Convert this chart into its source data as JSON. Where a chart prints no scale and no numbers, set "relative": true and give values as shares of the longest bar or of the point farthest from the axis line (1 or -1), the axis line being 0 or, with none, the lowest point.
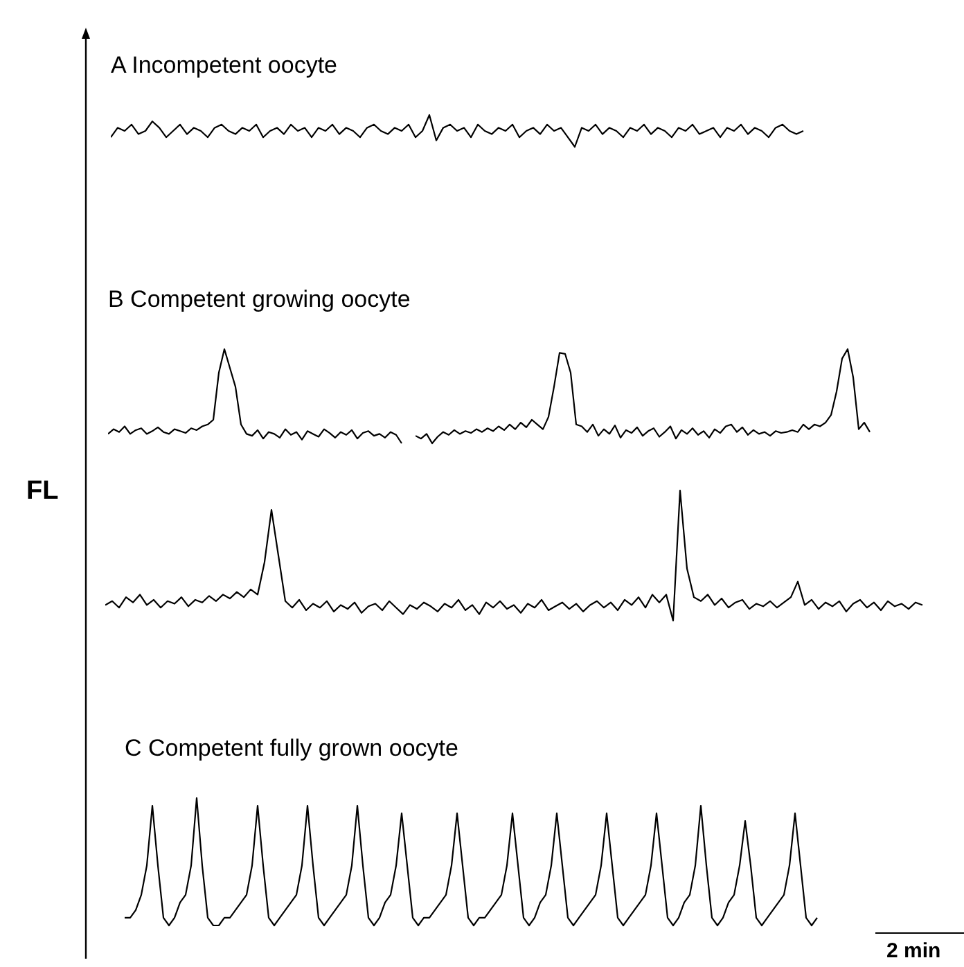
{
  "chart_data": [
    {
      "type": "line",
      "relative": true,
      "tick_labels": false,
      "title": "A Incompetent oocyte",
      "categories": [
        null,
        null,
        null,
        null,
        null,
        null,
        null,
        null,
        null,
        null,
        null,
        null,
        null,
        null,
        null,
        null,
        null,
        null,
        null,
        null,
        null,
        null,
        null,
        null,
        null,
        null,
        null,
        null,
        null,
        null,
        null,
        null,
        null,
        null,
        null,
        null,
        null,
        null,
        null,
        null,
        null,
        null,
        null,
        null,
        null,
        null,
        null,
        null,
        null,
        null,
        null,
        null,
        null,
        null,
        null,
        null,
        null,
        null,
        null,
        null,
        null,
        null,
        null,
        null,
        null,
        null,
        null,
        null,
        null,
        null,
        null,
        null,
        null,
        null,
        null,
        null,
        null,
        null,
        null,
        null,
        null,
        null,
        null,
        null,
        null,
        null,
        null,
        null,
        null,
        null,
        null,
        null,
        null,
        null,
        null,
        null,
        null,
        null,
        null,
        null,
        null
      ],
      "series": [
        {
          "color": "#000000",
          "values": [
            0.3,
            0.6,
            0.5,
            0.7,
            0.4,
            0.5,
            0.8,
            0.6,
            0.3,
            0.5,
            0.7,
            0.4,
            0.6,
            0.5,
            0.3,
            0.6,
            0.7,
            0.5,
            0.4,
            0.6,
            0.5,
            0.7,
            0.3,
            0.5,
            0.6,
            0.4,
            0.7,
            0.5,
            0.6,
            0.3,
            0.6,
            0.5,
            0.7,
            0.4,
            0.6,
            0.5,
            0.3,
            0.6,
            0.7,
            0.5,
            0.4,
            0.6,
            0.5,
            0.7,
            0.3,
            0.5,
            1.0,
            0.2,
            0.6,
            0.7,
            0.5,
            0.6,
            0.3,
            0.7,
            0.5,
            0.4,
            0.6,
            0.5,
            0.7,
            0.3,
            0.5,
            0.6,
            0.4,
            0.7,
            0.5,
            0.6,
            0.3,
            0.0,
            0.6,
            0.5,
            0.7,
            0.4,
            0.6,
            0.5,
            0.3,
            0.6,
            0.5,
            0.7,
            0.4,
            0.6,
            0.5,
            0.3,
            0.6,
            0.5,
            0.7,
            0.4,
            0.5,
            0.6,
            0.3,
            0.6,
            0.5,
            0.7,
            0.4,
            0.6,
            0.5,
            0.3,
            0.6,
            0.7,
            0.5,
            0.4,
            0.5
          ]
        }
      ]
    },
    {
      "type": "line",
      "relative": true,
      "tick_labels": false,
      "title": "B Competent growing oocyte",
      "ylabel": "FL",
      "categories": [
        null,
        null,
        null,
        null,
        null,
        null,
        null,
        null,
        null,
        null,
        null,
        null,
        null,
        null,
        null,
        null,
        null,
        null,
        null,
        null,
        null,
        null,
        null,
        null,
        null,
        null,
        null,
        null,
        null,
        null,
        null,
        null,
        null,
        null,
        null,
        null,
        null,
        null,
        null,
        null,
        null,
        null,
        null,
        null,
        null,
        null,
        null,
        null,
        null,
        null,
        null,
        null,
        null,
        null
      ],
      "series": [
        {
          "color": "#000000",
          "values": [
            0.1,
            0.15,
            0.12,
            0.18,
            0.1,
            0.14,
            0.16,
            0.1,
            0.13,
            0.17,
            0.12,
            0.1,
            0.15,
            0.13,
            0.11,
            0.16,
            0.14,
            0.18,
            0.2,
            0.25,
            0.75,
            1.0,
            0.8,
            0.6,
            0.2,
            0.1,
            0.08,
            0.14,
            0.05,
            0.12,
            0.1,
            0.06,
            0.15,
            0.09,
            0.12,
            0.04,
            0.13,
            0.1,
            0.07,
            0.15,
            0.11,
            0.06,
            0.12,
            0.09,
            0.14,
            0.05,
            0.11,
            0.13,
            0.08,
            0.1,
            0.06,
            0.12,
            0.09,
            0.0
          ]
        }
      ]
    },
    {
      "type": "line",
      "relative": true,
      "tick_labels": false,
      "categories": [
        null,
        null,
        null,
        null,
        null,
        null,
        null,
        null,
        null,
        null,
        null,
        null,
        null,
        null,
        null,
        null,
        null,
        null,
        null,
        null,
        null,
        null,
        null,
        null,
        null,
        null,
        null,
        null,
        null,
        null,
        null,
        null,
        null,
        null,
        null,
        null,
        null,
        null,
        null,
        null,
        null,
        null,
        null,
        null,
        null,
        null,
        null,
        null,
        null,
        null,
        null,
        null,
        null,
        null,
        null,
        null,
        null,
        null,
        null,
        null,
        null,
        null,
        null,
        null,
        null,
        null,
        null,
        null,
        null,
        null,
        null,
        null,
        null,
        null,
        null,
        null,
        null,
        null,
        null,
        null,
        null,
        null,
        null
      ],
      "series": [
        {
          "color": "#000000",
          "values": [
            0.08,
            0.05,
            0.1,
            0.0,
            0.07,
            0.12,
            0.09,
            0.14,
            0.1,
            0.13,
            0.11,
            0.15,
            0.12,
            0.16,
            0.13,
            0.18,
            0.14,
            0.2,
            0.15,
            0.22,
            0.17,
            0.25,
            0.2,
            0.15,
            0.28,
            0.6,
            0.96,
            0.95,
            0.75,
            0.2,
            0.18,
            0.12,
            0.2,
            0.08,
            0.15,
            0.1,
            0.19,
            0.06,
            0.14,
            0.11,
            0.17,
            0.08,
            0.13,
            0.16,
            0.07,
            0.12,
            0.18,
            0.05,
            0.14,
            0.1,
            0.16,
            0.09,
            0.13,
            0.06,
            0.15,
            0.11,
            0.18,
            0.2,
            0.12,
            0.17,
            0.09,
            0.14,
            0.1,
            0.12,
            0.08,
            0.13,
            0.11,
            0.12,
            0.14,
            0.12,
            0.2,
            0.15,
            0.2,
            0.18,
            0.22,
            0.3,
            0.55,
            0.9,
            1.0,
            0.7,
            0.15,
            0.22,
            0.12
          ]
        }
      ]
    },
    {
      "type": "line",
      "relative": true,
      "tick_labels": false,
      "categories": [
        null,
        null,
        null,
        null,
        null,
        null,
        null,
        null,
        null,
        null,
        null,
        null,
        null,
        null,
        null,
        null,
        null,
        null,
        null,
        null,
        null,
        null,
        null,
        null,
        null,
        null,
        null,
        null,
        null,
        null,
        null,
        null,
        null,
        null,
        null,
        null,
        null,
        null,
        null,
        null,
        null,
        null,
        null,
        null,
        null,
        null,
        null,
        null,
        null,
        null,
        null,
        null,
        null,
        null,
        null,
        null,
        null,
        null,
        null,
        null,
        null,
        null,
        null,
        null,
        null,
        null,
        null,
        null,
        null,
        null,
        null,
        null,
        null,
        null,
        null,
        null,
        null,
        null,
        null,
        null,
        null,
        null,
        null,
        null,
        null,
        null,
        null,
        null,
        null,
        null,
        null,
        null,
        null,
        null,
        null,
        null,
        null,
        null,
        null,
        null,
        null,
        null,
        null,
        null,
        null,
        null,
        null,
        null,
        null,
        null,
        null,
        null,
        null,
        null,
        null,
        null,
        null,
        null,
        null
      ],
      "series": [
        {
          "color": "#000000",
          "values": [
            0.12,
            0.15,
            0.1,
            0.18,
            0.14,
            0.2,
            0.12,
            0.16,
            0.1,
            0.15,
            0.13,
            0.18,
            0.11,
            0.16,
            0.14,
            0.19,
            0.15,
            0.2,
            0.17,
            0.22,
            0.18,
            0.24,
            0.2,
            0.45,
            0.85,
            0.5,
            0.15,
            0.1,
            0.16,
            0.08,
            0.13,
            0.1,
            0.15,
            0.07,
            0.12,
            0.09,
            0.14,
            0.06,
            0.11,
            0.13,
            0.08,
            0.15,
            0.1,
            0.05,
            0.12,
            0.09,
            0.14,
            0.11,
            0.07,
            0.13,
            0.1,
            0.16,
            0.08,
            0.12,
            0.05,
            0.14,
            0.1,
            0.15,
            0.09,
            0.12,
            0.06,
            0.13,
            0.1,
            0.16,
            0.08,
            0.11,
            0.14,
            0.09,
            0.13,
            0.07,
            0.12,
            0.15,
            0.1,
            0.14,
            0.08,
            0.16,
            0.12,
            0.18,
            0.1,
            0.2,
            0.14,
            0.2,
            0.0,
            1.0,
            0.4,
            0.18,
            0.15,
            0.2,
            0.12,
            0.17,
            0.1,
            0.14,
            0.16,
            0.09,
            0.13,
            0.11,
            0.15,
            0.1,
            0.14,
            0.18,
            0.3,
            0.12,
            0.16,
            0.09,
            0.14,
            0.11,
            0.15,
            0.07,
            0.13,
            0.16,
            0.1,
            0.14,
            0.08,
            0.15,
            0.11,
            0.13,
            0.09,
            0.14,
            0.12
          ]
        }
      ]
    },
    {
      "type": "line",
      "relative": true,
      "tick_labels": false,
      "title": "C Competent fully grown oocyte",
      "annotations": [
        "2 min"
      ],
      "categories": [
        null,
        null,
        null,
        null,
        null,
        null,
        null,
        null,
        null,
        null,
        null,
        null,
        null,
        null,
        null,
        null,
        null,
        null,
        null,
        null,
        null,
        null,
        null,
        null,
        null,
        null,
        null,
        null,
        null,
        null,
        null,
        null,
        null,
        null,
        null,
        null,
        null,
        null,
        null,
        null,
        null,
        null,
        null,
        null,
        null,
        null,
        null,
        null,
        null,
        null,
        null,
        null,
        null,
        null,
        null,
        null,
        null,
        null,
        null,
        null,
        null,
        null,
        null,
        null,
        null,
        null,
        null,
        null,
        null,
        null,
        null,
        null,
        null,
        null,
        null,
        null,
        null,
        null,
        null,
        null,
        null,
        null,
        null,
        null,
        null,
        null,
        null,
        null,
        null,
        null,
        null,
        null,
        null,
        null,
        null,
        null,
        null,
        null,
        null,
        null,
        null,
        null,
        null,
        null,
        null,
        null,
        null,
        null,
        null,
        null,
        null,
        null,
        null,
        null,
        null,
        null,
        null,
        null,
        null,
        null,
        null,
        null,
        null,
        null,
        null,
        null
      ],
      "series": [
        {
          "color": "#000000",
          "values": [
            0.06,
            0.06,
            0.12,
            0.24,
            0.47,
            0.94,
            0.47,
            0.06,
            0,
            0.06,
            0.18,
            0.24,
            0.47,
            1.0,
            0.47,
            0.06,
            0,
            0,
            0.06,
            0.06,
            0.12,
            0.18,
            0.24,
            0.47,
            0.94,
            0.47,
            0.06,
            0,
            0.06,
            0.12,
            0.18,
            0.24,
            0.47,
            0.94,
            0.47,
            0.06,
            0,
            0.06,
            0.12,
            0.18,
            0.24,
            0.47,
            0.94,
            0.47,
            0.06,
            0,
            0.06,
            0.18,
            0.24,
            0.47,
            0.88,
            0.47,
            0.06,
            0,
            0.06,
            0.06,
            0.12,
            0.18,
            0.24,
            0.47,
            0.88,
            0.47,
            0.06,
            0,
            0.06,
            0.06,
            0.12,
            0.18,
            0.24,
            0.47,
            0.88,
            0.47,
            0.06,
            0,
            0.06,
            0.18,
            0.24,
            0.47,
            0.88,
            0.47,
            0.06,
            0,
            0.06,
            0.12,
            0.18,
            0.24,
            0.47,
            0.88,
            0.47,
            0.06,
            0,
            0.06,
            0.12,
            0.18,
            0.24,
            0.47,
            0.88,
            0.47,
            0.06,
            0,
            0.06,
            0.18,
            0.24,
            0.47,
            0.94,
            0.47,
            0.06,
            0,
            0.06,
            0.18,
            0.24,
            0.47,
            0.82,
            0.47,
            0.06,
            0,
            0.06,
            0.12,
            0.18,
            0.24,
            0.47,
            0.88,
            0.47,
            0.06,
            0,
            0.06
          ]
        }
      ]
    }
  ]
}
